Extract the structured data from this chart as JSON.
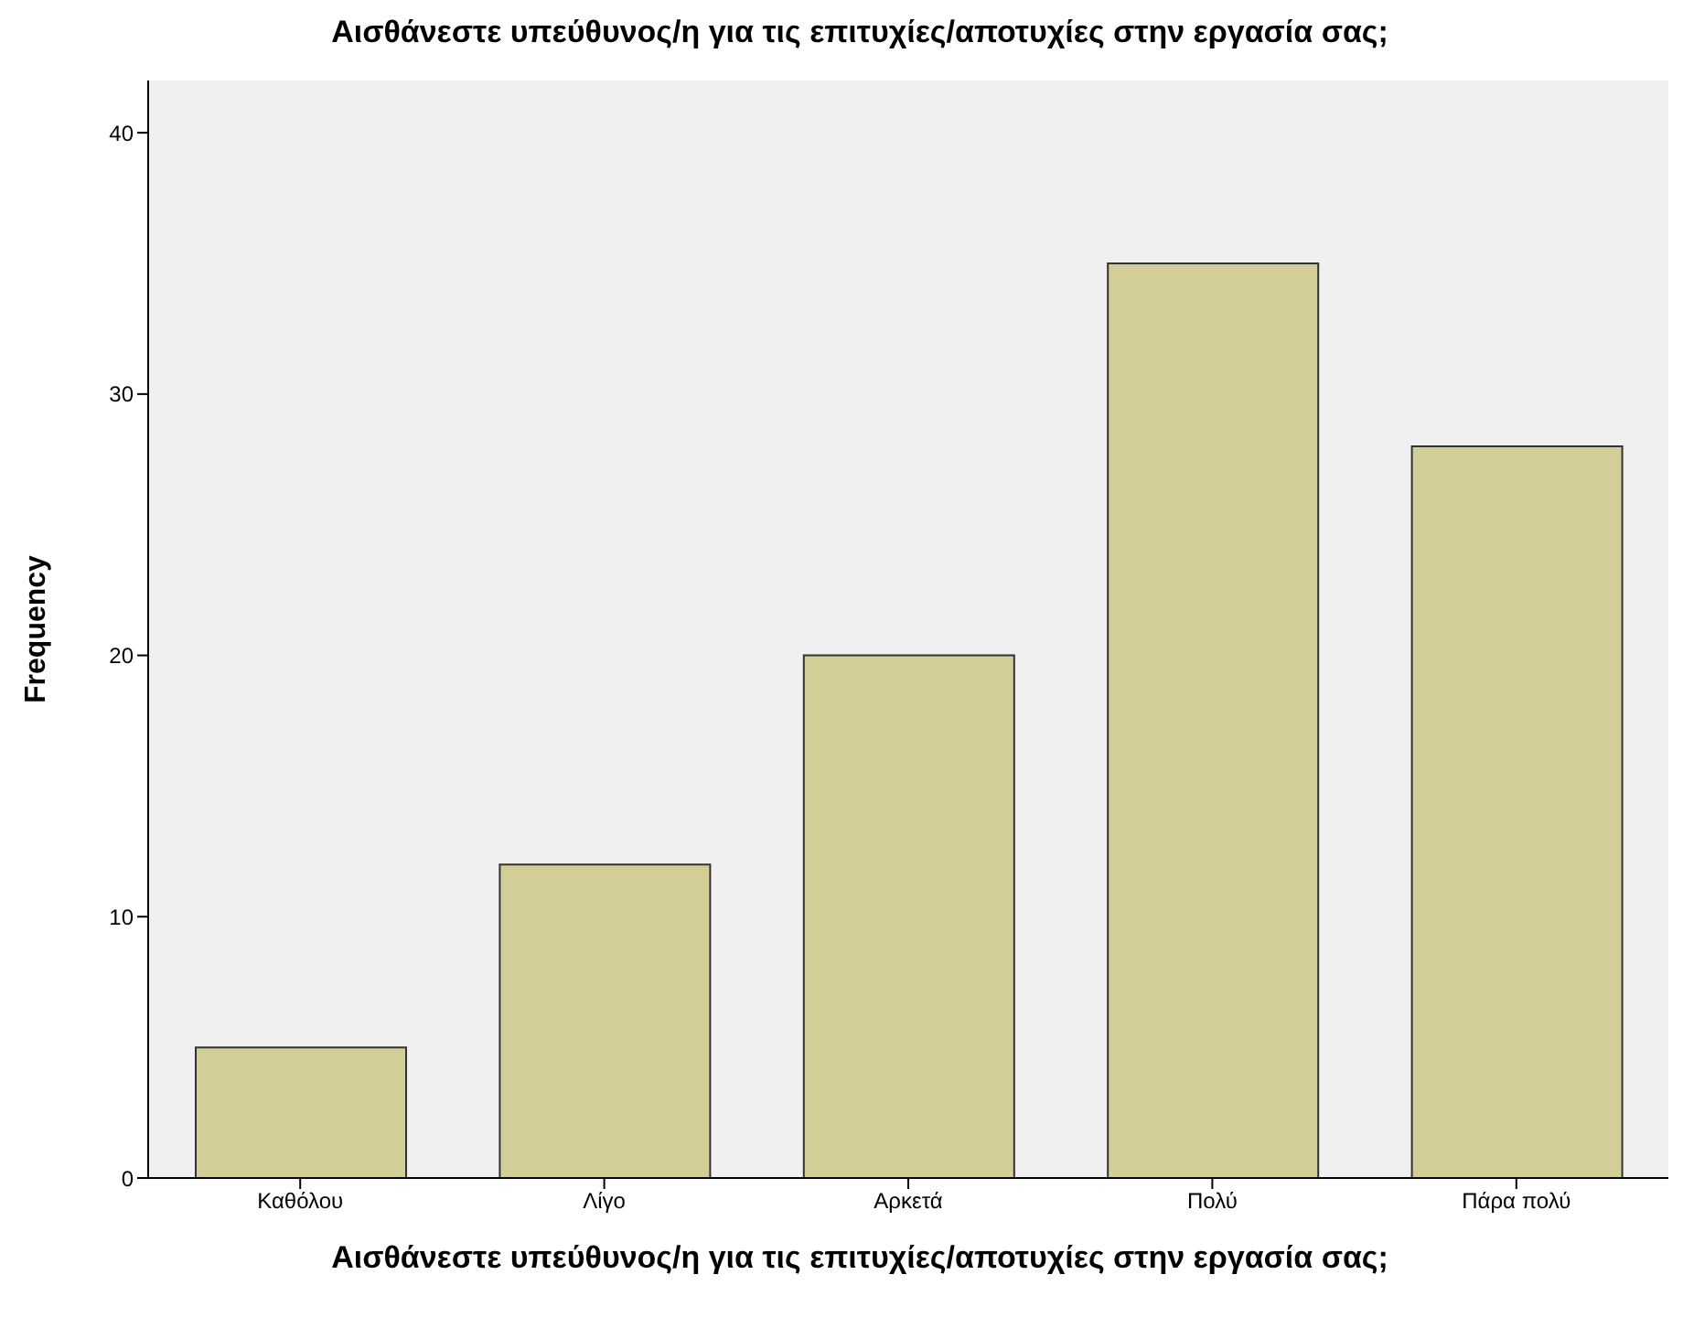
{
  "chart_data": {
    "type": "bar",
    "title": "Αισθάνεστε υπεύθυνος/η για τις επιτυχίες/αποτυχίες στην εργασία σας;",
    "xlabel": "Αισθάνεστε υπεύθυνος/η για τις επιτυχίες/αποτυχίες στην εργασία σας;",
    "ylabel": "Frequency",
    "categories": [
      "Καθόλου",
      "Λίγο",
      "Αρκετά",
      "Πολύ",
      "Πάρα πολύ"
    ],
    "values": [
      5,
      12,
      20,
      35,
      28
    ],
    "color": "#d3ce97",
    "ylim": [
      0,
      42
    ],
    "yticks": [
      0,
      10,
      20,
      30,
      40
    ],
    "grid": false
  }
}
